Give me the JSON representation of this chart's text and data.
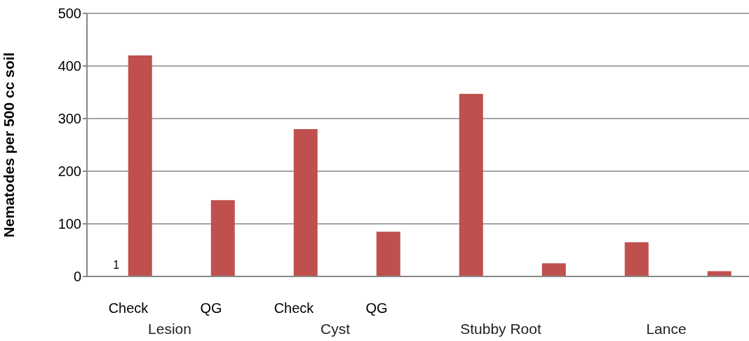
{
  "chart_data": {
    "type": "bar",
    "ylabel": "Nematodes per 500 cc soil",
    "categories": [
      "Check",
      "QG",
      "Check",
      "QG",
      null,
      null,
      null,
      null
    ],
    "series": [
      {
        "color": "#4f81bd",
        "values": [
          1,
          null,
          null,
          null,
          null,
          null,
          null,
          null
        ],
        "value_labels": [
          "1",
          null,
          null,
          null,
          null,
          null,
          null,
          null
        ]
      },
      {
        "color": "#c0504d",
        "values": [
          420,
          145,
          280,
          85,
          347,
          25,
          65,
          10
        ]
      }
    ],
    "annotations": [
      "Lesion",
      "Cyst",
      "Stubby Root",
      "Lance"
    ],
    "ylim": [
      0,
      500
    ],
    "yticks": [
      0,
      100,
      200,
      300,
      400,
      500
    ],
    "grid": "y",
    "legend": false
  }
}
